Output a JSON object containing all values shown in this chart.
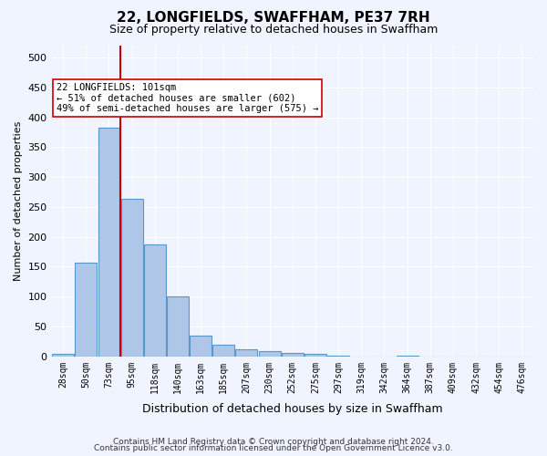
{
  "title": "22, LONGFIELDS, SWAFFHAM, PE37 7RH",
  "subtitle": "Size of property relative to detached houses in Swaffham",
  "xlabel": "Distribution of detached houses by size in Swaffham",
  "ylabel": "Number of detached properties",
  "bin_labels": [
    "28sqm",
    "50sqm",
    "73sqm",
    "95sqm",
    "118sqm",
    "140sqm",
    "163sqm",
    "185sqm",
    "207sqm",
    "230sqm",
    "252sqm",
    "275sqm",
    "297sqm",
    "319sqm",
    "342sqm",
    "364sqm",
    "387sqm",
    "409sqm",
    "432sqm",
    "454sqm",
    "476sqm"
  ],
  "bar_values": [
    5,
    157,
    383,
    263,
    188,
    101,
    35,
    20,
    12,
    9,
    6,
    4,
    1,
    0,
    0,
    1,
    0,
    0,
    0,
    0,
    0
  ],
  "bar_color": "#aec6e8",
  "bar_edge_color": "#5a96c8",
  "property_size": 101,
  "property_bin_index": 3,
  "red_line_color": "#cc0000",
  "annotation_text": "22 LONGFIELDS: 101sqm\n← 51% of detached houses are smaller (602)\n49% of semi-detached houses are larger (575) →",
  "annotation_box_color": "#ffffff",
  "annotation_box_edge_color": "#cc0000",
  "footnote1": "Contains HM Land Registry data © Crown copyright and database right 2024.",
  "footnote2": "Contains public sector information licensed under the Open Government Licence v3.0.",
  "background_color": "#f0f4ff",
  "plot_bg_color": "#f0f4ff",
  "ylim": [
    0,
    520
  ],
  "yticks": [
    0,
    50,
    100,
    150,
    200,
    250,
    300,
    350,
    400,
    450,
    500
  ]
}
